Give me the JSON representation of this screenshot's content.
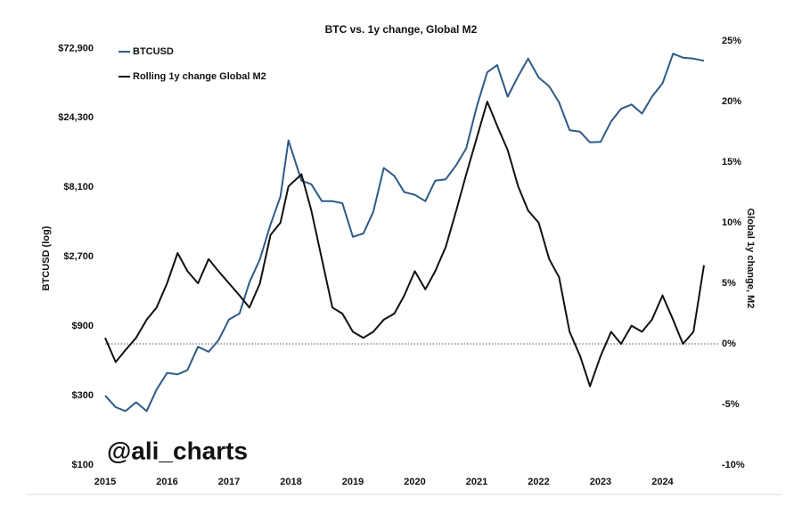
{
  "chart_data": {
    "type": "line",
    "title": "BTC vs. 1y change, Global M2",
    "ylabel": "BTCUSD (log)",
    "y2label": "Global 1y change, M2",
    "annotation": "@ali_charts",
    "log_y": true,
    "legend": "upper left",
    "y2_refline": 0,
    "xlim": [
      2015,
      2024.9
    ],
    "xticks": [
      2015,
      2016,
      2017,
      2018,
      2019,
      2020,
      2021,
      2022,
      2023,
      2024
    ],
    "ylim": [
      100,
      82000
    ],
    "yticks": [
      {
        "value": 100,
        "label": "$100"
      },
      {
        "value": 300,
        "label": "$300"
      },
      {
        "value": 900,
        "label": "$900"
      },
      {
        "value": 2700,
        "label": "$2,700"
      },
      {
        "value": 8100,
        "label": "$8,100"
      },
      {
        "value": 24300,
        "label": "$24,300"
      },
      {
        "value": 72900,
        "label": "$72,900"
      }
    ],
    "y2lim": [
      -10,
      25
    ],
    "y2ticks": [
      {
        "value": -10,
        "label": "-10%"
      },
      {
        "value": -5,
        "label": "-5%"
      },
      {
        "value": 0,
        "label": "0%"
      },
      {
        "value": 5,
        "label": "5%"
      },
      {
        "value": 10,
        "label": "10%"
      },
      {
        "value": 15,
        "label": "15%"
      },
      {
        "value": 20,
        "label": "20%"
      },
      {
        "value": 25,
        "label": "25%"
      }
    ],
    "x": [
      2015.0,
      2015.17,
      2015.33,
      2015.5,
      2015.67,
      2015.83,
      2016.0,
      2016.17,
      2016.33,
      2016.5,
      2016.67,
      2016.83,
      2017.0,
      2017.17,
      2017.33,
      2017.5,
      2017.67,
      2017.83,
      2017.96,
      2018.17,
      2018.33,
      2018.5,
      2018.67,
      2018.83,
      2019.0,
      2019.17,
      2019.33,
      2019.5,
      2019.67,
      2019.83,
      2020.0,
      2020.17,
      2020.33,
      2020.5,
      2020.67,
      2020.83,
      2021.0,
      2021.17,
      2021.33,
      2021.5,
      2021.67,
      2021.83,
      2022.0,
      2022.17,
      2022.33,
      2022.5,
      2022.67,
      2022.83,
      2023.0,
      2023.17,
      2023.33,
      2023.5,
      2023.67,
      2023.83,
      2024.0,
      2024.17,
      2024.33,
      2024.5,
      2024.67
    ],
    "series": [
      {
        "name": "BTCUSD",
        "color": "#2d5b88",
        "axis": "y",
        "values": [
          300,
          250,
          235,
          270,
          235,
          330,
          430,
          420,
          450,
          650,
          600,
          720,
          1000,
          1100,
          1800,
          2600,
          4500,
          7000,
          17000,
          9000,
          8500,
          6500,
          6500,
          6300,
          3700,
          3900,
          5500,
          11000,
          9700,
          7500,
          7200,
          6500,
          9000,
          9200,
          11500,
          15000,
          29000,
          50000,
          56000,
          34000,
          47000,
          62000,
          46000,
          40000,
          31000,
          20000,
          19500,
          16500,
          16600,
          23000,
          28000,
          30000,
          26000,
          34000,
          42000,
          67000,
          63000,
          62000,
          60000
        ]
      },
      {
        "name": "Rolling 1y change Global M2",
        "color": "#111111",
        "axis": "y2",
        "values": [
          0.5,
          -1.5,
          -0.5,
          0.5,
          2,
          3,
          5,
          7.5,
          6,
          5,
          7,
          6,
          5,
          4,
          3,
          5,
          9,
          10,
          13,
          14,
          11,
          7,
          3,
          2.5,
          1,
          0.5,
          1,
          2,
          2.5,
          4,
          6,
          4.5,
          6,
          8,
          11,
          14,
          17,
          20,
          18,
          16,
          13,
          11,
          10,
          7,
          5.5,
          1,
          -1,
          -3.5,
          -1,
          1,
          0,
          1.5,
          1,
          2,
          4,
          2,
          0,
          1,
          6.5
        ]
      }
    ]
  }
}
